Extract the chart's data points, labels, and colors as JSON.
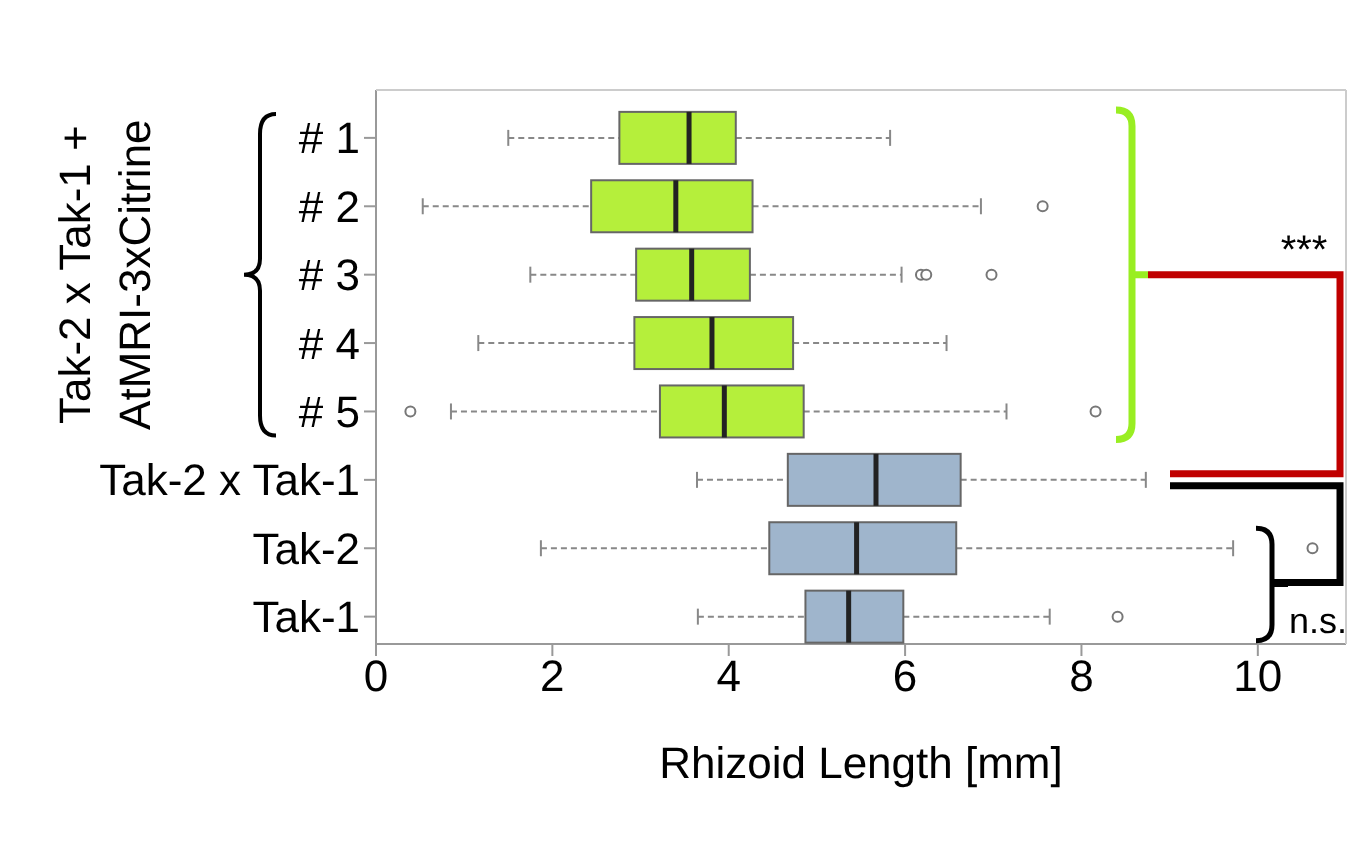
{
  "chart_data": {
    "type": "box",
    "orientation": "horizontal",
    "ylabel": "Tak-2 x Tak-1 + AtMRI-3xCitrine",
    "xlabel": "Rhizoid Length [mm]",
    "categories": [
      "# 1",
      "# 2",
      "# 3",
      "# 4",
      "# 5",
      "Tak-2 x Tak-1",
      "Tak-2",
      "Tak-1"
    ],
    "colors": [
      "#b5ef3b",
      "#b5ef3b",
      "#b5ef3b",
      "#b5ef3b",
      "#b5ef3b",
      "#9fb5cc",
      "#9fb5cc",
      "#9fb5cc"
    ],
    "boxes": [
      {
        "low": 1.5,
        "q1": 2.76,
        "median": 3.55,
        "q3": 4.08,
        "high": 5.83
      },
      {
        "low": 0.53,
        "q1": 2.44,
        "median": 3.4,
        "q3": 4.27,
        "high": 6.86,
        "outliers": [
          7.56
        ]
      },
      {
        "low": 1.75,
        "q1": 2.95,
        "median": 3.58,
        "q3": 4.24,
        "high": 5.96,
        "outliers": [
          6.18,
          6.24,
          6.98
        ]
      },
      {
        "low": 1.16,
        "q1": 2.93,
        "median": 3.81,
        "q3": 4.73,
        "high": 6.47
      },
      {
        "low": 0.85,
        "q1": 3.22,
        "median": 3.95,
        "q3": 4.85,
        "high": 7.15,
        "outliers": [
          0.39,
          8.16
        ]
      },
      {
        "low": 3.64,
        "q1": 4.67,
        "median": 5.67,
        "q3": 6.63,
        "high": 8.73
      },
      {
        "low": 1.87,
        "q1": 4.46,
        "median": 5.45,
        "q3": 6.58,
        "high": 9.72,
        "outliers": [
          10.62
        ]
      },
      {
        "low": 3.65,
        "q1": 4.87,
        "median": 5.36,
        "q3": 5.98,
        "high": 7.64,
        "outliers": [
          8.41
        ]
      }
    ],
    "xlim": [
      0,
      11
    ],
    "xticks": [
      0,
      2,
      4,
      6,
      8,
      10
    ],
    "annotations": [
      "***",
      "n.s."
    ]
  }
}
